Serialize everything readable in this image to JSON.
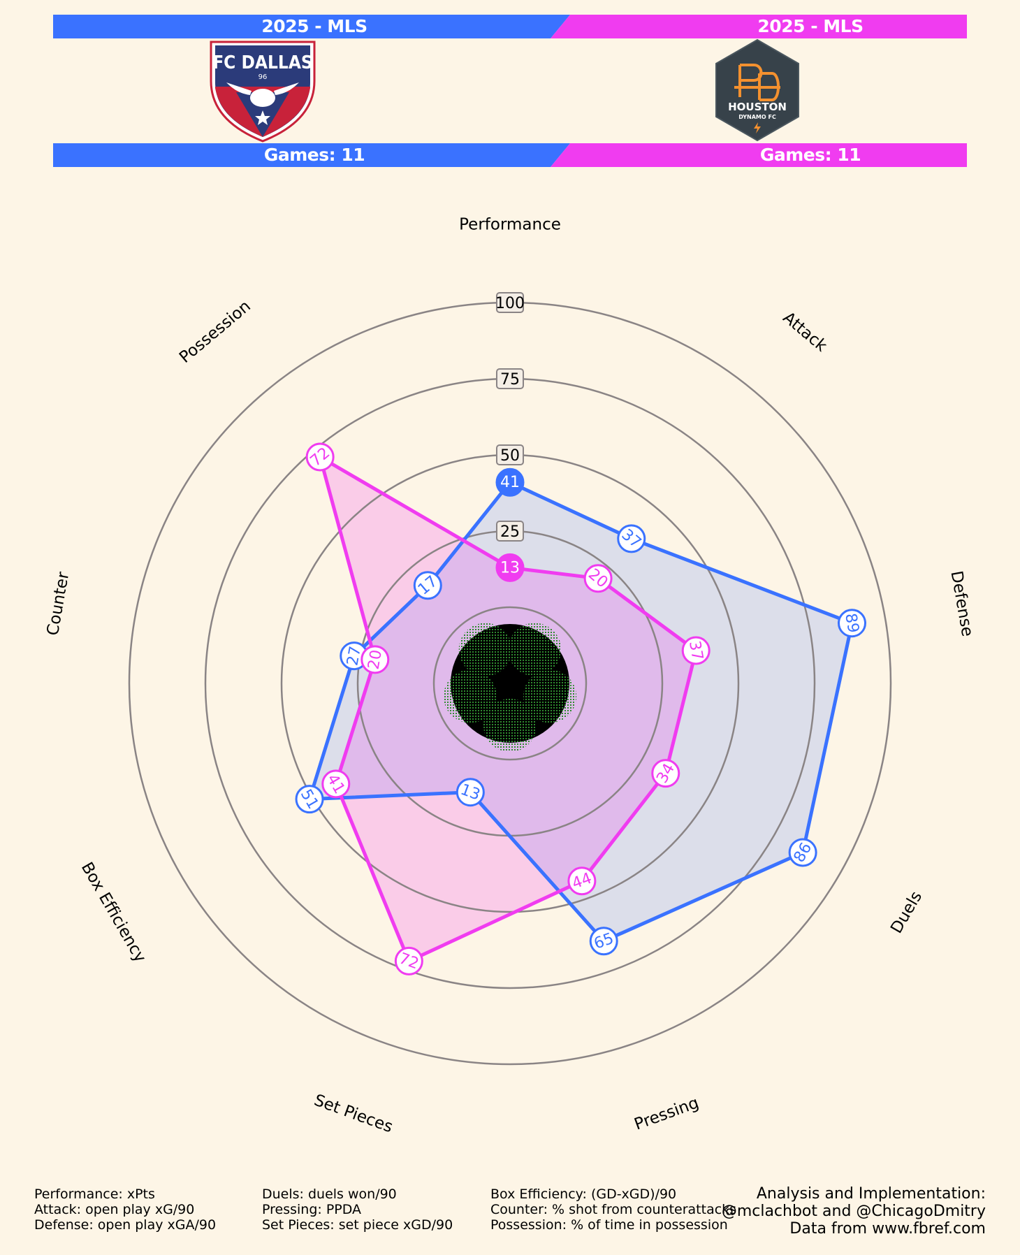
{
  "header": {
    "left": {
      "season": "2025 - MLS",
      "games": "Games: 11",
      "color": "#3a72ff",
      "logo_icon": "fc-dallas-crest",
      "logo_text": "FC DALLAS",
      "logo_sub": "96"
    },
    "right": {
      "season": "2025 - MLS",
      "games": "Games: 11",
      "color": "#f03cf0",
      "logo_icon": "houston-dynamo-crest",
      "logo_text": "HOUSTON",
      "logo_sub": "DYNAMO FC"
    }
  },
  "chart_data": {
    "type": "radar",
    "categories": [
      "Performance",
      "Attack",
      "Defense",
      "Duels",
      "Pressing",
      "Set Pieces",
      "Box Efficiency",
      "Counter",
      "Possession"
    ],
    "rings": [
      25,
      50,
      75,
      100
    ],
    "ring_labels": [
      "25",
      "50",
      "75",
      "100"
    ],
    "range": [
      0,
      100
    ],
    "series": [
      {
        "values": [
          41,
          37,
          89,
          86,
          65,
          13,
          51,
          27,
          17
        ],
        "color": "#3a72ff",
        "fill": "rgba(58,114,255,0.17)"
      },
      {
        "values": [
          13,
          20,
          37,
          34,
          44,
          72,
          41,
          20,
          72
        ],
        "color": "#f03cf0",
        "fill": "rgba(240,60,240,0.22)"
      }
    ],
    "highlight_index": 0
  },
  "footer": {
    "col1": [
      "Performance: xPts",
      "Attack: open play xG/90",
      "Defense: open play xGA/90"
    ],
    "col2": [
      "Duels: duels won/90",
      "Pressing: PPDA",
      "Set Pieces: set piece xGD/90"
    ],
    "col3": [
      "Box Efficiency: (GD-xGD)/90",
      "Counter: % shot from counterattacks",
      "Possession: % of time in possession"
    ],
    "credits": [
      "Analysis and Implementation:",
      "@mclachbot and @ChicagoDmitry",
      "Data from www.fbref.com"
    ]
  }
}
